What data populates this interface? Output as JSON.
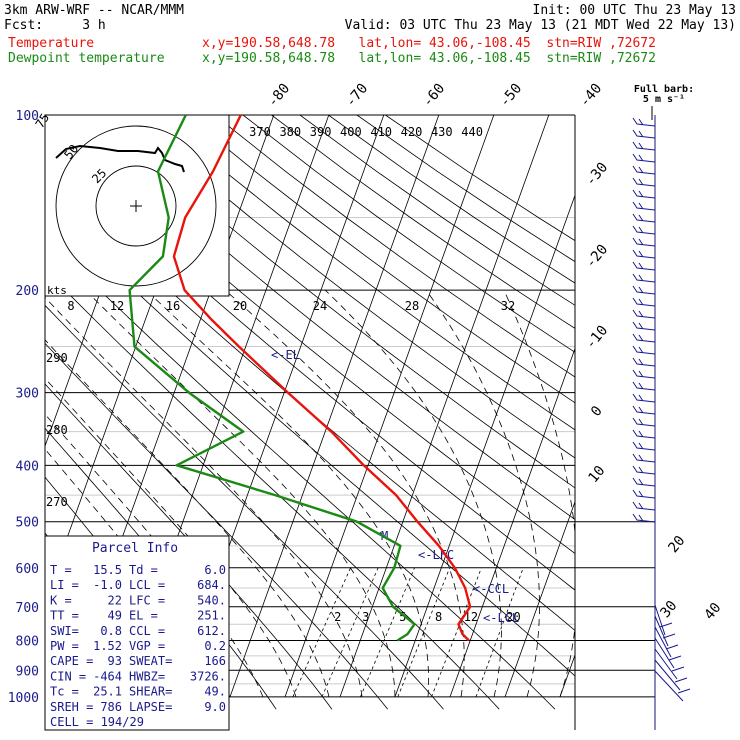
{
  "header": {
    "model": "3km ARW-WRF -- NCAR/MMM",
    "init": "Init: 00 UTC Thu 23 May 13",
    "fcst": "Fcst:     3 h",
    "valid": "Valid: 03 UTC Thu 23 May 13 (21 MDT Wed 22 May 13)",
    "temp_label": "Temperature",
    "temp_info": "x,y=190.58,648.78   lat,lon= 43.06,-108.45  stn=RIW ,72672",
    "dew_label": "Dewpoint temperature",
    "dew_info": "x,y=190.58,648.78   lat,lon= 43.06,-108.45  stn=RIW ,72672",
    "temp_color": "#e8140c",
    "dew_color": "#1a8a14",
    "text_color": "#1a1a8c"
  },
  "chart_data": {
    "type": "line",
    "pressure_labels": [
      "100",
      "200",
      "300",
      "400",
      "500",
      "600",
      "700",
      "800",
      "900",
      "1000"
    ],
    "temp_labels": [
      "-80",
      "-70",
      "-60",
      "-50",
      "-40",
      "-30",
      "-20",
      "-10",
      "0",
      "10",
      "20",
      "30",
      "40"
    ],
    "theta_labels": [
      "370",
      "380",
      "390",
      "400",
      "410",
      "420",
      "430",
      "440"
    ],
    "lower_theta_labels": [
      "290",
      "280",
      "270"
    ],
    "wind_labels": [
      "kts",
      "8",
      "12",
      "16",
      "20",
      "24",
      "28",
      "32"
    ],
    "mixing_ratio_labels": [
      "2",
      "3",
      "5",
      "8",
      "12",
      "20"
    ],
    "hodograph_labels": [
      "75",
      "50",
      "25"
    ],
    "annotations": [
      "<-EL",
      "M",
      "<-LFC",
      "<-CCL",
      "<-LCL"
    ],
    "barb_label": "Full barb:",
    "barb_unit": "5 m s⁻¹",
    "series": [
      {
        "name": "Temperature",
        "color": "#e8140c",
        "points": [
          [
            100,
            -56
          ],
          [
            125,
            -60
          ],
          [
            150,
            -64
          ],
          [
            175,
            -65
          ],
          [
            200,
            -62
          ],
          [
            225,
            -56
          ],
          [
            250,
            -50
          ],
          [
            300,
            -39
          ],
          [
            350,
            -29
          ],
          [
            400,
            -21
          ],
          [
            450,
            -13
          ],
          [
            500,
            -7
          ],
          [
            550,
            -1
          ],
          [
            600,
            4
          ],
          [
            650,
            8
          ],
          [
            700,
            11
          ],
          [
            750,
            11
          ],
          [
            780,
            13
          ],
          [
            800,
            15
          ]
        ]
      },
      {
        "name": "Dewpoint temperature",
        "color": "#1a8a14",
        "points": [
          [
            100,
            -66
          ],
          [
            125,
            -70
          ],
          [
            150,
            -67
          ],
          [
            175,
            -67
          ],
          [
            200,
            -72
          ],
          [
            250,
            -69
          ],
          [
            300,
            -57
          ],
          [
            350,
            -45
          ],
          [
            400,
            -55
          ],
          [
            450,
            -35
          ],
          [
            500,
            -18
          ],
          [
            550,
            -8
          ],
          [
            600,
            -7
          ],
          [
            650,
            -7
          ],
          [
            700,
            -3
          ],
          [
            750,
            3
          ],
          [
            780,
            3
          ],
          [
            800,
            2
          ]
        ]
      }
    ]
  },
  "parcel_info": {
    "title": "Parcel Info",
    "rows": [
      [
        "T  =",
        "15.5",
        "Td =",
        "6.0"
      ],
      [
        "LI =",
        "-1.0",
        "LCL =",
        "684."
      ],
      [
        "K  =",
        "22",
        "LFC =",
        "540."
      ],
      [
        "TT =",
        "49",
        "EL  =",
        "251."
      ],
      [
        "SWI=",
        "0.8",
        "CCL =",
        "612."
      ],
      [
        "PW =",
        "1.52",
        "VGP =",
        "0.2"
      ],
      [
        "CAPE =",
        "93",
        "SWEAT=",
        "166"
      ],
      [
        "CIN =",
        "-464",
        "HWBZ=",
        "3726."
      ],
      [
        "Tc =",
        "25.1",
        "SHEAR=",
        "49."
      ],
      [
        "SREH =",
        "786",
        "LAPSE=",
        "9.0"
      ]
    ],
    "cell": "CELL = 194/29"
  }
}
